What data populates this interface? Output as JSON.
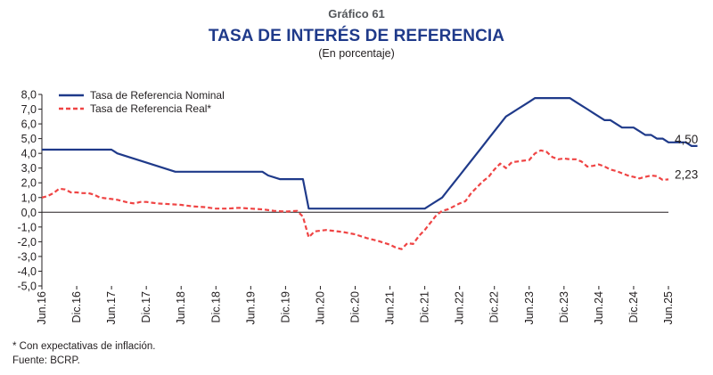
{
  "header": {
    "figure_number": "Gráfico 61",
    "title": "TASA DE INTERÉS DE REFERENCIA",
    "subtitle": "(En porcentaje)"
  },
  "footnotes": {
    "note": "* Con expectativas de inflación.",
    "source": "Fuente: BCRP."
  },
  "chart_data": {
    "type": "line",
    "title": "TASA DE INTERÉS DE REFERENCIA",
    "subtitle": "(En porcentaje)",
    "ylim": [
      -5,
      8
    ],
    "y_ticks": [
      "8,0",
      "7,0",
      "6,0",
      "5,0",
      "4,0",
      "3,0",
      "2,0",
      "1,0",
      "0,0",
      "-1,0",
      "-2,0",
      "-3,0",
      "-4,0",
      "-5,0"
    ],
    "x_ticks": [
      "Jun.16",
      "Dic.16",
      "Jun.17",
      "Dic.17",
      "Jun.18",
      "Dic.18",
      "Jun.19",
      "Dic.19",
      "Jun.20",
      "Dic.20",
      "Jun.21",
      "Dic.21",
      "Jun.22",
      "Dic.22",
      "Jun.23",
      "Dic.23",
      "Jun.24",
      "Dic.24",
      "Jun.25"
    ],
    "x_range": [
      "Jun.16",
      "Jun.25"
    ],
    "grid": false,
    "legend": "top-left",
    "colors": {
      "nominal": "#1f3a8a",
      "real": "#ef4444"
    },
    "series": [
      {
        "name": "Tasa de Referencia Nominal",
        "style": "solid",
        "end_label": "4,50",
        "values": [
          [
            0,
            4.25
          ],
          [
            12,
            4.25
          ],
          [
            13,
            4.0
          ],
          [
            15,
            3.75
          ],
          [
            17,
            3.5
          ],
          [
            19,
            3.25
          ],
          [
            21,
            3.0
          ],
          [
            23,
            2.75
          ],
          [
            38,
            2.75
          ],
          [
            39,
            2.5
          ],
          [
            41,
            2.25
          ],
          [
            45,
            2.25
          ],
          [
            46,
            0.25
          ],
          [
            66,
            0.25
          ],
          [
            67,
            0.5
          ],
          [
            69,
            1.0
          ],
          [
            70,
            1.5
          ],
          [
            71,
            2.0
          ],
          [
            72,
            2.5
          ],
          [
            73,
            3.0
          ],
          [
            74,
            3.5
          ],
          [
            75,
            4.0
          ],
          [
            76,
            4.5
          ],
          [
            77,
            5.0
          ],
          [
            78,
            5.5
          ],
          [
            79,
            6.0
          ],
          [
            80,
            6.5
          ],
          [
            81,
            6.75
          ],
          [
            82,
            7.0
          ],
          [
            83,
            7.25
          ],
          [
            84,
            7.5
          ],
          [
            85,
            7.75
          ],
          [
            91,
            7.75
          ],
          [
            92,
            7.5
          ],
          [
            93,
            7.25
          ],
          [
            94,
            7.0
          ],
          [
            95,
            6.75
          ],
          [
            96,
            6.5
          ],
          [
            97,
            6.25
          ],
          [
            98,
            6.25
          ],
          [
            99,
            6.0
          ],
          [
            100,
            5.75
          ],
          [
            102,
            5.75
          ],
          [
            103,
            5.5
          ],
          [
            104,
            5.25
          ],
          [
            105,
            5.25
          ],
          [
            106,
            5.0
          ],
          [
            107,
            5.0
          ],
          [
            108,
            4.75
          ],
          [
            111,
            4.75
          ],
          [
            112,
            4.5
          ],
          [
            113,
            4.5
          ]
        ]
      },
      {
        "name": "Tasa de Referencia Real*",
        "style": "dashed",
        "end_label": "2,23",
        "values": [
          [
            0,
            1.0
          ],
          [
            1,
            1.1
          ],
          [
            2,
            1.3
          ],
          [
            3,
            1.6
          ],
          [
            4,
            1.55
          ],
          [
            5,
            1.35
          ],
          [
            6,
            1.35
          ],
          [
            7,
            1.3
          ],
          [
            8,
            1.3
          ],
          [
            9,
            1.2
          ],
          [
            10,
            1.0
          ],
          [
            11,
            0.95
          ],
          [
            12,
            0.9
          ],
          [
            13,
            0.85
          ],
          [
            14,
            0.75
          ],
          [
            15,
            0.65
          ],
          [
            16,
            0.6
          ],
          [
            17,
            0.7
          ],
          [
            18,
            0.7
          ],
          [
            19,
            0.65
          ],
          [
            20,
            0.6
          ],
          [
            22,
            0.55
          ],
          [
            24,
            0.5
          ],
          [
            26,
            0.4
          ],
          [
            28,
            0.35
          ],
          [
            30,
            0.25
          ],
          [
            32,
            0.25
          ],
          [
            34,
            0.3
          ],
          [
            36,
            0.25
          ],
          [
            38,
            0.2
          ],
          [
            40,
            0.1
          ],
          [
            42,
            0.05
          ],
          [
            44,
            0.1
          ],
          [
            45,
            -0.3
          ],
          [
            46,
            -1.7
          ],
          [
            47,
            -1.3
          ],
          [
            48,
            -1.25
          ],
          [
            49,
            -1.2
          ],
          [
            50,
            -1.25
          ],
          [
            52,
            -1.35
          ],
          [
            54,
            -1.5
          ],
          [
            56,
            -1.75
          ],
          [
            58,
            -1.95
          ],
          [
            60,
            -2.2
          ],
          [
            61,
            -2.4
          ],
          [
            62,
            -2.5
          ],
          [
            63,
            -2.1
          ],
          [
            64,
            -2.15
          ],
          [
            65,
            -1.6
          ],
          [
            66,
            -1.2
          ],
          [
            67,
            -0.7
          ],
          [
            68,
            -0.2
          ],
          [
            69,
            0.1
          ],
          [
            70,
            0.2
          ],
          [
            71,
            0.4
          ],
          [
            72,
            0.6
          ],
          [
            73,
            0.75
          ],
          [
            74,
            1.3
          ],
          [
            75,
            1.7
          ],
          [
            76,
            2.1
          ],
          [
            77,
            2.4
          ],
          [
            78,
            2.9
          ],
          [
            79,
            3.3
          ],
          [
            80,
            3.0
          ],
          [
            81,
            3.4
          ],
          [
            82,
            3.45
          ],
          [
            83,
            3.5
          ],
          [
            84,
            3.55
          ],
          [
            85,
            4.0
          ],
          [
            86,
            4.2
          ],
          [
            87,
            4.1
          ],
          [
            88,
            3.75
          ],
          [
            89,
            3.6
          ],
          [
            90,
            3.65
          ],
          [
            91,
            3.6
          ],
          [
            92,
            3.6
          ],
          [
            93,
            3.45
          ],
          [
            94,
            3.1
          ],
          [
            95,
            3.15
          ],
          [
            96,
            3.25
          ],
          [
            97,
            3.1
          ],
          [
            98,
            2.9
          ],
          [
            99,
            2.8
          ],
          [
            100,
            2.65
          ],
          [
            101,
            2.5
          ],
          [
            102,
            2.4
          ],
          [
            103,
            2.3
          ],
          [
            104,
            2.4
          ],
          [
            105,
            2.5
          ],
          [
            106,
            2.45
          ],
          [
            107,
            2.2
          ],
          [
            108,
            2.23
          ]
        ]
      }
    ]
  }
}
